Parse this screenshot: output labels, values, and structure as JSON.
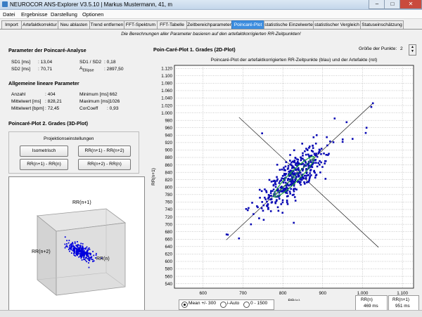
{
  "window": {
    "title": "NEUROCOR ANS-Explorer V3.5.10 | Markus Mustermann, 41, m",
    "minimize": "–",
    "maximize": "□",
    "close": "✕"
  },
  "menu": [
    "Datei",
    "Ergebnisse",
    "Darstellung",
    "Optionen"
  ],
  "tabs": [
    "Import",
    "Artefaktkorrektur",
    "Neu ablasten",
    "Trend entfernen",
    "FFT-Spektrum",
    "FFT-Tabelle",
    "Zeitbereichparameter",
    "Poincaré-Plot",
    "statistische Einzelwerte",
    "statistischer Vergleich",
    "Statuseinschätzung"
  ],
  "active_tab": 7,
  "notice": "Die Berechnungen aller Parameter basieren auf den artefaktkorrigierten RR-Zeitpunkten!",
  "poincare_params": {
    "header": "Parameter der Poincaré-Analyse",
    "sd1_label": "SD1 [ms]",
    "sd1_value": ": 13,04",
    "sd2_label": "SD2 [ms]",
    "sd2_value": ": 70,71",
    "ratio_label": "SD1 / SD2",
    "ratio_value": ": 0,18",
    "ellipse_label_a": "A",
    "ellipse_label_sub": "Ellipse",
    "ellipse_value": ": 2897,50"
  },
  "linear_params": {
    "header": "Allgemeine lineare Parameter",
    "rows": [
      {
        "l1": "Anzahl",
        "v1": ": 404",
        "l2": "Minimum [ms]",
        "v2": ": 662"
      },
      {
        "l1": "Mittelwert [ms]",
        "v1": ": 828,21",
        "l2": "Maximum [ms]",
        "v2": ": 1026"
      },
      {
        "l1": "Mittelwert [bpm]",
        "v1": ": 72,45",
        "l2": "CorCoeff",
        "v2": ": 0,93"
      }
    ]
  },
  "plot3d_section": {
    "header": "Poincaré-Plot 2. Grades (3D-Plot)",
    "proj_title": "Projektionseinstellungen",
    "buttons": [
      "Isometrisch",
      "RR(n+1) - RR(n+2)",
      "RR(n+1) - RR(n)",
      "RR(n+2) - RR(n)"
    ],
    "axis_labels": [
      "RR(n+1)",
      "RR(n+2)",
      "RR(n)"
    ]
  },
  "plot2d_section": {
    "title": "Poin-Caré-Plot 1. Grades (2D-Plot)",
    "size_label": "Größe der Punkte:",
    "size_value": "2"
  },
  "range_options": {
    "selected": 0,
    "labels": [
      "Mean +/- 300",
      "i-Auto",
      "0 - 1500"
    ]
  },
  "rr_boxes": [
    {
      "label": "RR(n)",
      "value": "469 ms"
    },
    {
      "label": "RR(n+1)",
      "value": "951 ms"
    }
  ],
  "chart_data": {
    "type": "scatter",
    "title": "Poincaré-Plot der artefaktkorrigierten RR-Zeitpunkte (blau) und der Artefakte (rot)",
    "xlabel": "RR(n)",
    "ylabel": "RR(n+1)",
    "xlim": [
      528,
      1128
    ],
    "ylim": [
      528,
      1128
    ],
    "x_ticks": [
      600,
      700,
      800,
      900,
      1000,
      1100
    ],
    "x_tick_labels": [
      "600",
      "700",
      "800",
      "900",
      "1.000",
      "1.100"
    ],
    "y_ticks": [
      540,
      560,
      580,
      600,
      620,
      640,
      660,
      680,
      700,
      720,
      740,
      760,
      780,
      800,
      820,
      840,
      860,
      880,
      900,
      920,
      940,
      960,
      980,
      1000,
      1020,
      1040,
      1060,
      1080,
      1100,
      1120
    ],
    "y_tick_labels": [
      "540",
      "560",
      "580",
      "600",
      "620",
      "640",
      "660",
      "680",
      "700",
      "720",
      "740",
      "760",
      "780",
      "800",
      "820",
      "840",
      "860",
      "880",
      "900",
      "920",
      "940",
      "960",
      "980",
      "1.000",
      "1.020",
      "1.040",
      "1.060",
      "1.080",
      "1.100",
      "1.120"
    ],
    "grid": true,
    "mean": 828,
    "sd1": 13,
    "sd2": 71,
    "n_points": 404,
    "corr": 0.93,
    "line_identity": [
      [
        658,
        658
      ],
      [
        1026,
        1026
      ]
    ],
    "line_perpendicular": [
      [
        690,
        988
      ],
      [
        1040,
        638
      ]
    ],
    "outliers": [
      [
        662,
        672
      ],
      [
        690,
        662
      ],
      [
        748,
        945
      ],
      [
        1010,
        960
      ],
      [
        1008,
        946
      ],
      [
        1026,
        1026
      ],
      [
        1022,
        1016
      ],
      [
        930,
        985
      ],
      [
        885,
        940
      ],
      [
        960,
        975
      ],
      [
        720,
        700
      ],
      [
        712,
        738
      ],
      [
        752,
        712
      ],
      [
        950,
        922
      ],
      [
        975,
        930
      ]
    ],
    "colors": {
      "points": "#0a0ab4",
      "ellipse": "#1aa33a",
      "lines": "#000000"
    }
  },
  "plot3d_data": {
    "n_points": 300,
    "colors": {
      "points": "#0000dd",
      "box": "#999999",
      "fill": "#d8d8d8"
    }
  }
}
